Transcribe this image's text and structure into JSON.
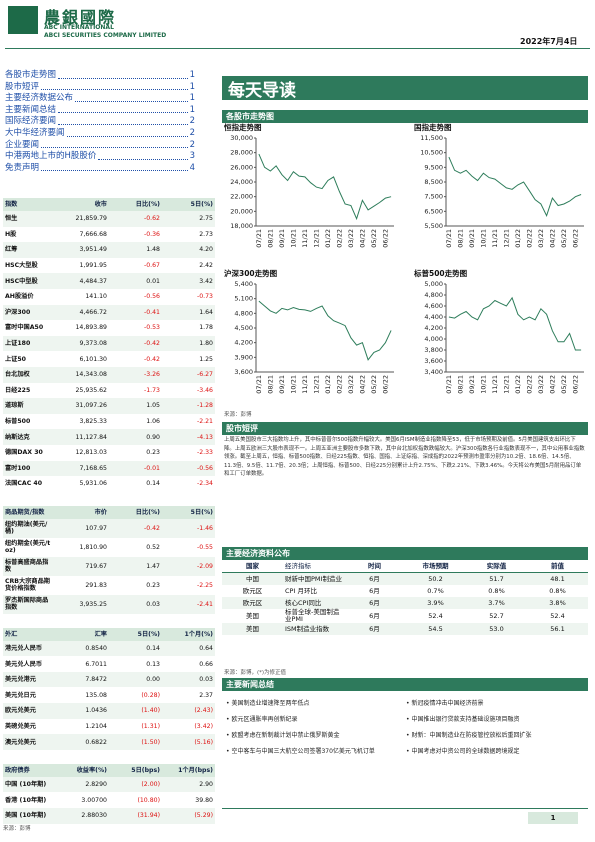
{
  "header": {
    "logo_cn": "農銀國際",
    "logo_en": "ABC INTERNATIONAL",
    "company": "ABCI SECURITIES COMPANY LIMITED",
    "date": "2022年7月4日"
  },
  "toc": [
    {
      "title": "各股市走势图",
      "page": "1"
    },
    {
      "title": "股市短评",
      "page": "1"
    },
    {
      "title": "主要经济数据公布",
      "page": "1"
    },
    {
      "title": "主要新闻总结",
      "page": "1"
    },
    {
      "title": "国际经济要闻",
      "page": "2"
    },
    {
      "title": "大中华经济要闻",
      "page": "2"
    },
    {
      "title": "企业要闻",
      "page": "2"
    },
    {
      "title": "中港两地上市的H股股价",
      "page": "3"
    },
    {
      "title": "免责声明",
      "page": "4"
    }
  ],
  "title": "每天导读",
  "market_section": "各股市走势图",
  "chart_data": [
    {
      "type": "line",
      "title": "恒指走势图",
      "color": "#2e7d5b",
      "categories": [
        "07/21",
        null,
        "08/21",
        null,
        "09/21",
        null,
        "10/21",
        null,
        "11/21",
        null,
        "12/21",
        null,
        "01/22",
        null,
        "02/22",
        null,
        "03/22",
        null,
        "04/22",
        null,
        "05/22",
        null,
        "06/22",
        null
      ],
      "values": [
        27800,
        26000,
        25500,
        26200,
        25000,
        24200,
        25400,
        24800,
        24700,
        23900,
        23300,
        23100,
        24200,
        24700,
        22700,
        21000,
        20800,
        19000,
        21500,
        20200,
        20700,
        21200,
        21800,
        22000
      ],
      "ylim": [
        18000,
        30000
      ],
      "yticks": [
        {
          "value": 18000,
          "label": "18,000"
        },
        {
          "value": 20000,
          "label": "20,000"
        },
        {
          "value": 22000,
          "label": "22,000"
        },
        {
          "value": 24000,
          "label": "24,000"
        },
        {
          "value": 26000,
          "label": "26,000"
        },
        {
          "value": 28000,
          "label": "28,000"
        },
        {
          "value": 30000,
          "label": "30,000"
        }
      ]
    },
    {
      "type": "line",
      "title": "国指走势图",
      "color": "#2e7d5b",
      "categories": [
        "07/21",
        null,
        "08/21",
        null,
        "09/21",
        null,
        "10/21",
        null,
        "11/21",
        null,
        "12/21",
        null,
        "01/22",
        null,
        "02/22",
        null,
        "03/22",
        null,
        "04/22",
        null,
        "05/22",
        null,
        "06/22",
        null
      ],
      "values": [
        10200,
        9300,
        9100,
        9300,
        8900,
        8600,
        9100,
        8800,
        8700,
        8400,
        8100,
        8000,
        8300,
        8500,
        7900,
        7300,
        7000,
        6200,
        7400,
        6900,
        7000,
        7200,
        7500,
        7650
      ],
      "ylim": [
        5500,
        11500
      ],
      "yticks": [
        {
          "value": 5500,
          "label": "5,500"
        },
        {
          "value": 6500,
          "label": "6,500"
        },
        {
          "value": 7500,
          "label": "7,500"
        },
        {
          "value": 8500,
          "label": "8,500"
        },
        {
          "value": 9500,
          "label": "9,500"
        },
        {
          "value": 10500,
          "label": "10,500"
        },
        {
          "value": 11500,
          "label": "11,500"
        }
      ]
    },
    {
      "type": "line",
      "title": "沪深300走势图",
      "color": "#2e7d5b",
      "categories": [
        "07/21",
        null,
        "08/21",
        null,
        "09/21",
        null,
        "10/21",
        null,
        "11/21",
        null,
        "12/21",
        null,
        "01/22",
        null,
        "02/22",
        null,
        "03/22",
        null,
        "04/22",
        null,
        "05/22",
        null,
        "06/22",
        null
      ],
      "values": [
        5050,
        4950,
        4850,
        4800,
        4900,
        4870,
        4920,
        4880,
        4870,
        4840,
        4900,
        4950,
        4750,
        4650,
        4600,
        4550,
        4300,
        4150,
        4200,
        3850,
        4000,
        4050,
        4200,
        4450
      ],
      "ylim": [
        3600,
        5400
      ],
      "yticks": [
        {
          "value": 3600,
          "label": "3,600"
        },
        {
          "value": 3900,
          "label": "3,900"
        },
        {
          "value": 4200,
          "label": "4,200"
        },
        {
          "value": 4500,
          "label": "4,500"
        },
        {
          "value": 4800,
          "label": "4,800"
        },
        {
          "value": 5100,
          "label": "5,100"
        },
        {
          "value": 5400,
          "label": "5,400"
        }
      ]
    },
    {
      "type": "line",
      "title": "标普500走势图",
      "color": "#2e7d5b",
      "categories": [
        "07/21",
        null,
        "08/21",
        null,
        "09/21",
        null,
        "10/21",
        null,
        "11/21",
        null,
        "12/21",
        null,
        "01/22",
        null,
        "02/22",
        null,
        "03/22",
        null,
        "04/22",
        null,
        "05/22",
        null,
        "06/22",
        null
      ],
      "values": [
        4400,
        4380,
        4450,
        4500,
        4400,
        4350,
        4550,
        4600,
        4700,
        4650,
        4600,
        4750,
        4450,
        4350,
        4400,
        4350,
        4550,
        4450,
        4150,
        3950,
        3950,
        4100,
        3800,
        3800
      ],
      "ylim": [
        3400,
        5000
      ],
      "yticks": [
        {
          "value": 3400,
          "label": "3,400"
        },
        {
          "value": 3600,
          "label": "3,600"
        },
        {
          "value": 3800,
          "label": "3,800"
        },
        {
          "value": 4000,
          "label": "4,000"
        },
        {
          "value": 4200,
          "label": "4,200"
        },
        {
          "value": 4400,
          "label": "4,400"
        },
        {
          "value": 4600,
          "label": "4,600"
        },
        {
          "value": 4800,
          "label": "4,800"
        },
        {
          "value": 5000,
          "label": "5,000"
        }
      ]
    }
  ],
  "chart_source": "来源：彭博",
  "indices": {
    "header": [
      "指数",
      "收市",
      "日比(%)",
      "5日(%)"
    ],
    "rows": [
      [
        "恒生",
        "21,859.79",
        "-0.62",
        "2.75"
      ],
      [
        "H股",
        "7,666.68",
        "-0.36",
        "2.73"
      ],
      [
        "红筹",
        "3,951.49",
        "1.48",
        "4.20"
      ],
      [
        "HSC大型股",
        "1,991.95",
        "-0.67",
        "2.42"
      ],
      [
        "HSC中型股",
        "4,484.37",
        "0.01",
        "3.42"
      ],
      [
        "AH股溢价",
        "141.10",
        "-0.56",
        "-0.73"
      ],
      [
        "沪深300",
        "4,466.72",
        "-0.41",
        "1.64"
      ],
      [
        "富时中国A50",
        "14,893.89",
        "-0.53",
        "1.78"
      ],
      [
        "上证180",
        "9,373.08",
        "-0.42",
        "1.80"
      ],
      [
        "上证50",
        "6,101.30",
        "-0.42",
        "1.25"
      ],
      [
        "台北加权",
        "14,343.08",
        "-3.26",
        "-6.27"
      ],
      [
        "日经225",
        "25,935.62",
        "-1.73",
        "-3.46"
      ],
      [
        "道琼斯",
        "31,097.26",
        "1.05",
        "-1.28"
      ],
      [
        "标普500",
        "3,825.33",
        "1.06",
        "-2.21"
      ],
      [
        "纳斯达克",
        "11,127.84",
        "0.90",
        "-4.13"
      ],
      [
        "德国DAX 30",
        "12,813.03",
        "0.23",
        "-2.33"
      ],
      [
        "富时100",
        "7,168.65",
        "-0.01",
        "-0.56"
      ],
      [
        "法国CAC 40",
        "5,931.06",
        "0.14",
        "-2.34"
      ]
    ]
  },
  "commodities": {
    "header": [
      "商品期货/指数",
      "市价",
      "日比(%)",
      "5日(%)"
    ],
    "rows": [
      [
        "纽约期油(美元/桶)",
        "107.97",
        "-0.42",
        "-1.46"
      ],
      [
        "纽约期金(美元/t oz)",
        "1,810.90",
        "0.52",
        "-0.55"
      ],
      [
        "标普高盛商品指数",
        "719.67",
        "1.47",
        "-2.09"
      ],
      [
        "CRB大宗商品期货价格指数",
        "291.83",
        "0.23",
        "-2.25"
      ],
      [
        "罗杰斯国际商品指数",
        "3,935.25",
        "0.03",
        "-2.41"
      ]
    ]
  },
  "fx": {
    "header": [
      "外汇",
      "汇率",
      "5日(%)",
      "1个月(%)"
    ],
    "rows": [
      [
        "港元兑人民币",
        "0.8540",
        "0.14",
        "0.64"
      ],
      [
        "美元兑人民币",
        "6.7011",
        "0.13",
        "0.66"
      ],
      [
        "美元兑港元",
        "7.8472",
        "0.00",
        "0.03"
      ],
      [
        "美元兑日元",
        "135.08",
        "(0.28)",
        "2.37"
      ],
      [
        "欧元兑美元",
        "1.0436",
        "(1.40)",
        "(2.43)"
      ],
      [
        "英磅兑美元",
        "1.2104",
        "(1.31)",
        "(3.42)"
      ],
      [
        "澳元兑美元",
        "0.6822",
        "(1.50)",
        "(5.16)"
      ]
    ]
  },
  "bonds": {
    "header": [
      "政府债券",
      "收益率(%)",
      "5日(bps)",
      "1个月(bps)"
    ],
    "rows": [
      [
        "中国 (10年期)",
        "2.8290",
        "(2.00)",
        "2.90"
      ],
      [
        "香港 (10年期)",
        "3.00700",
        "(10.80)",
        "39.80"
      ],
      [
        "美国 (10年期)",
        "2.88030",
        "(31.94)",
        "(5.29)"
      ]
    ]
  },
  "left_source": "来源：彭博",
  "commentary": {
    "title": "股市短评",
    "text": "上周五美国股市三大指数均上升，其中标普普尔500指数升幅较大。美国6月ISM制造业指数降至53，低于市场预期及前值。5月美国建筑支出环比下降。上周五欧洲三大股市表现不一。上周五亚洲主要股市多数下跌，其中台北加权指数跌幅较大。沪深300指数各行业指数表现不一，其中公用事业指数领涨。截至上周五，恒指、标普500指数、日经225指数、恒指、国指、上证综指、深成指的2022年预测市盈率分别为10.2倍、18.6倍、14.5倍、11.3倍、9.5倍、11.7倍、20.3倍；上周恒指、标普500、日经225分别累计上升2.75%、下跌2.21%、下跌3.46%。今天将公布美国5月耐用品订单和工厂订单数据。"
  },
  "economic": {
    "title": "主要经济资料公布",
    "header": [
      "国家",
      "经济指标",
      "时间",
      "市场预期",
      "实际值",
      "前值"
    ],
    "rows": [
      [
        "中国",
        "财新中国PMI制造业",
        "6月",
        "50.2",
        "51.7",
        "48.1"
      ],
      [
        "欧元区",
        "CPI 月环比",
        "6月",
        "0.7%",
        "0.8%",
        "0.8%"
      ],
      [
        "欧元区",
        "核心CPI同比",
        "6月",
        "3.9%",
        "3.7%",
        "3.8%"
      ],
      [
        "美国",
        "标普全球-美国制造业PMI",
        "6月",
        "52.4",
        "52.7",
        "52.4"
      ],
      [
        "美国",
        "ISM制造业指数",
        "6月",
        "54.5",
        "53.0",
        "56.1"
      ]
    ],
    "source": "来源：彭博，(*)为修正值"
  },
  "news": {
    "title": "主要新闻总结",
    "items": [
      "美国制造业增速降至两年低点",
      "新冠疫情冲击中国经济前景",
      "欧元区通胀率再创新纪录",
      "中国推出银行贷款支持基础设施项目融资",
      "欧盟考虑在新制裁计划中禁止俄罗斯黄金",
      "财新：中国制造业在防疫管控放松后重回扩张",
      "空中客车与中国三大航空公司签署370亿美元飞机订单",
      "中国考虑对中资公司的全球数据跨境规定"
    ]
  },
  "footer": {
    "page": "1"
  }
}
